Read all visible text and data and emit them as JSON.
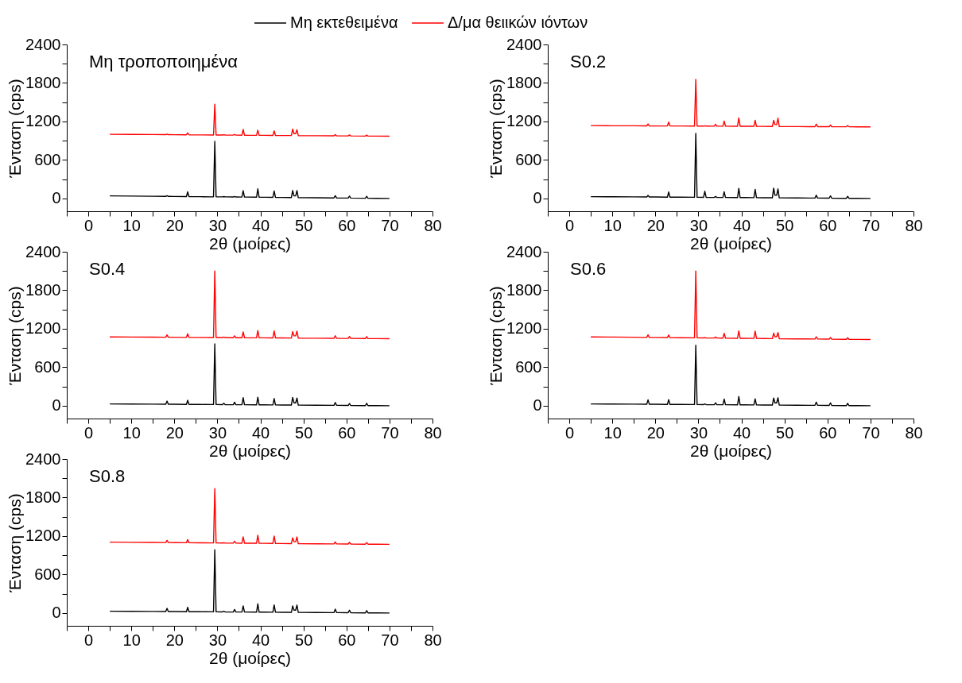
{
  "chart_data": [
    {
      "type": "line",
      "annotations": [
        "Μη τροποποιημένα"
      ],
      "xlabel": "2θ (μοίρες)",
      "ylabel": "Ένταση (cps)",
      "legend": "top",
      "x": [
        5,
        10,
        15,
        18.0,
        18.3,
        18.6,
        20,
        22.8,
        23.1,
        23.4,
        26,
        29.1,
        29.4,
        29.7,
        31.2,
        31.5,
        31.8,
        33.7,
        34.0,
        34.3,
        35.7,
        36.0,
        36.3,
        39.1,
        39.4,
        39.7,
        41,
        42.9,
        43.2,
        43.5,
        45,
        47.2,
        47.5,
        47.8,
        48.2,
        48.5,
        48.8,
        53,
        57.1,
        57.4,
        57.7,
        60.4,
        60.7,
        61.0,
        64.4,
        64.7,
        65.0,
        67,
        70
      ],
      "xlim": [
        -5,
        80
      ],
      "xticks": [
        {
          "value": -5,
          "label": null
        },
        0,
        {
          "value": 5,
          "label": null
        },
        10,
        {
          "value": 15,
          "label": null
        },
        20,
        {
          "value": 25,
          "label": null
        },
        30,
        {
          "value": 35,
          "label": null
        },
        40,
        {
          "value": 45,
          "label": null
        },
        50,
        {
          "value": 55,
          "label": null
        },
        60,
        {
          "value": 65,
          "label": null
        },
        70,
        {
          "value": 75,
          "label": null
        },
        80
      ],
      "ylim": [
        -200,
        2400
      ],
      "yticks": [
        0,
        {
          "value": 300,
          "label": null
        },
        600,
        {
          "value": 900,
          "label": null
        },
        1200,
        {
          "value": 1500,
          "label": null
        },
        1800,
        {
          "value": 2100,
          "label": null
        },
        2400
      ],
      "series": [
        {
          "name": "Μη εκτεθειμένα",
          "color": "#000000",
          "values": [
            40,
            37,
            34,
            32,
            42,
            32,
            31,
            29,
            104,
            29,
            27,
            25,
            890,
            25,
            24,
            29,
            24,
            22,
            30,
            22,
            21,
            121,
            21,
            19,
            149,
            19,
            18,
            17,
            117,
            17,
            15,
            14,
            124,
            40,
            40,
            123,
            13,
            10,
            8,
            43,
            8,
            6,
            36,
            6,
            3,
            33,
            3,
            2,
            0
          ]
        },
        {
          "name": "Δ/μα θειικών ιόντων",
          "color": "#ff0000",
          "values": [
            1000,
            998,
            996,
            994,
            1004,
            994,
            993,
            992,
            1022,
            992,
            990,
            989,
            1468,
            989,
            988,
            993,
            988,
            987,
            997,
            987,
            986,
            1076,
            986,
            984,
            1064,
            984,
            984,
            983,
            1053,
            983,
            981,
            981,
            1081,
            1010,
            1010,
            1071,
            980,
            978,
            976,
            996,
            976,
            975,
            990,
            975,
            972,
            987,
            972,
            972,
            970
          ]
        }
      ]
    },
    {
      "type": "line",
      "annotations": [
        "S0.2"
      ],
      "xlabel": "2θ (μοίρες)",
      "ylabel": "Ένταση (cps)",
      "x": [
        5,
        10,
        15,
        18.0,
        18.3,
        18.6,
        20,
        22.8,
        23.1,
        23.4,
        26,
        29.1,
        29.4,
        29.7,
        31.2,
        31.5,
        31.8,
        33.7,
        34.0,
        34.3,
        35.7,
        36.0,
        36.3,
        39.1,
        39.4,
        39.7,
        41,
        42.9,
        43.2,
        43.5,
        45,
        47.2,
        47.5,
        47.8,
        48.2,
        48.5,
        48.8,
        53,
        57.1,
        57.4,
        57.7,
        60.4,
        60.7,
        61.0,
        64.4,
        64.7,
        65.0,
        67,
        70
      ],
      "xlim": [
        -5,
        80
      ],
      "xticks": [
        {
          "value": -5,
          "label": null
        },
        0,
        {
          "value": 5,
          "label": null
        },
        10,
        {
          "value": 15,
          "label": null
        },
        20,
        {
          "value": 25,
          "label": null
        },
        30,
        {
          "value": 35,
          "label": null
        },
        40,
        {
          "value": 45,
          "label": null
        },
        50,
        {
          "value": 55,
          "label": null
        },
        60,
        {
          "value": 65,
          "label": null
        },
        70,
        {
          "value": 75,
          "label": null
        },
        80
      ],
      "ylim": [
        -200,
        2400
      ],
      "yticks": [
        0,
        {
          "value": 300,
          "label": null
        },
        600,
        {
          "value": 900,
          "label": null
        },
        1200,
        {
          "value": 1500,
          "label": null
        },
        1800,
        {
          "value": 2100,
          "label": null
        },
        2400
      ],
      "series": [
        {
          "color": "#000000",
          "values": [
            28,
            26,
            24,
            22,
            47,
            22,
            22,
            20,
            100,
            20,
            19,
            18,
            1015,
            18,
            17,
            112,
            17,
            15,
            30,
            15,
            15,
            105,
            15,
            13,
            158,
            13,
            13,
            12,
            142,
            12,
            11,
            10,
            160,
            50,
            49,
            149,
            9,
            7,
            6,
            51,
            6,
            4,
            39,
            4,
            2,
            32,
            2,
            1,
            0
          ]
        },
        {
          "color": "#ff0000",
          "values": [
            1135,
            1133,
            1132,
            1131,
            1161,
            1131,
            1130,
            1130,
            1190,
            1130,
            1129,
            1128,
            1857,
            1128,
            1127,
            1132,
            1127,
            1126,
            1156,
            1126,
            1126,
            1206,
            1126,
            1125,
            1255,
            1125,
            1124,
            1124,
            1219,
            1124,
            1123,
            1122,
            1217,
            1152,
            1151,
            1251,
            1121,
            1120,
            1119,
            1159,
            1119,
            1118,
            1143,
            1118,
            1117,
            1137,
            1117,
            1116,
            1115
          ]
        }
      ]
    },
    {
      "type": "line",
      "annotations": [
        "S0.4"
      ],
      "xlabel": "2θ (μοίρες)",
      "ylabel": "Ένταση (cps)",
      "x": [
        5,
        10,
        15,
        18.0,
        18.3,
        18.6,
        20,
        22.8,
        23.1,
        23.4,
        26,
        29.1,
        29.4,
        29.7,
        31.2,
        31.5,
        31.8,
        33.7,
        34.0,
        34.3,
        35.7,
        36.0,
        36.3,
        39.1,
        39.4,
        39.7,
        41,
        42.9,
        43.2,
        43.5,
        45,
        47.2,
        47.5,
        47.8,
        48.2,
        48.5,
        48.8,
        53,
        57.1,
        57.4,
        57.7,
        60.4,
        60.7,
        61.0,
        64.4,
        64.7,
        65.0,
        67,
        70
      ],
      "xlim": [
        -5,
        80
      ],
      "xticks": [
        {
          "value": -5,
          "label": null
        },
        0,
        {
          "value": 5,
          "label": null
        },
        10,
        {
          "value": 15,
          "label": null
        },
        20,
        {
          "value": 25,
          "label": null
        },
        30,
        {
          "value": 35,
          "label": null
        },
        40,
        {
          "value": 45,
          "label": null
        },
        50,
        {
          "value": 55,
          "label": null
        },
        60,
        {
          "value": 65,
          "label": null
        },
        70,
        {
          "value": 75,
          "label": null
        },
        80
      ],
      "ylim": [
        -200,
        2400
      ],
      "yticks": [
        0,
        {
          "value": 300,
          "label": null
        },
        600,
        {
          "value": 900,
          "label": null
        },
        1200,
        {
          "value": 1500,
          "label": null
        },
        1800,
        {
          "value": 2100,
          "label": null
        },
        2400
      ],
      "series": [
        {
          "color": "#000000",
          "values": [
            28,
            26,
            24,
            22,
            72,
            22,
            22,
            20,
            85,
            20,
            19,
            18,
            963,
            18,
            17,
            37,
            17,
            15,
            55,
            15,
            15,
            125,
            15,
            13,
            133,
            13,
            13,
            12,
            112,
            12,
            11,
            10,
            130,
            45,
            44,
            119,
            9,
            7,
            6,
            51,
            6,
            4,
            34,
            4,
            2,
            37,
            2,
            1,
            0
          ]
        },
        {
          "color": "#ff0000",
          "values": [
            1073,
            1071,
            1069,
            1067,
            1104,
            1067,
            1067,
            1065,
            1122,
            1065,
            1064,
            1063,
            2100,
            1063,
            1062,
            1070,
            1062,
            1060,
            1090,
            1060,
            1060,
            1150,
            1060,
            1058,
            1173,
            1058,
            1058,
            1057,
            1167,
            1057,
            1056,
            1055,
            1155,
            1090,
            1089,
            1164,
            1054,
            1052,
            1051,
            1091,
            1051,
            1049,
            1079,
            1049,
            1047,
            1077,
            1047,
            1046,
            1045
          ]
        }
      ]
    },
    {
      "type": "line",
      "annotations": [
        "S0.6"
      ],
      "xlabel": "2θ (μοίρες)",
      "ylabel": "Ένταση (cps)",
      "x": [
        5,
        10,
        15,
        18.0,
        18.3,
        18.6,
        20,
        22.8,
        23.1,
        23.4,
        26,
        29.1,
        29.4,
        29.7,
        31.2,
        31.5,
        31.8,
        33.7,
        34.0,
        34.3,
        35.7,
        36.0,
        36.3,
        39.1,
        39.4,
        39.7,
        41,
        42.9,
        43.2,
        43.5,
        45,
        47.2,
        47.5,
        47.8,
        48.2,
        48.5,
        48.8,
        53,
        57.1,
        57.4,
        57.7,
        60.4,
        60.7,
        61.0,
        64.4,
        64.7,
        65.0,
        67,
        70
      ],
      "xlim": [
        -5,
        80
      ],
      "xticks": [
        {
          "value": -5,
          "label": null
        },
        0,
        {
          "value": 5,
          "label": null
        },
        10,
        {
          "value": 15,
          "label": null
        },
        20,
        {
          "value": 25,
          "label": null
        },
        30,
        {
          "value": 35,
          "label": null
        },
        40,
        {
          "value": 45,
          "label": null
        },
        50,
        {
          "value": 55,
          "label": null
        },
        60,
        {
          "value": 65,
          "label": null
        },
        70,
        {
          "value": 75,
          "label": null
        },
        80
      ],
      "ylim": [
        -200,
        2400
      ],
      "yticks": [
        0,
        {
          "value": 300,
          "label": null
        },
        600,
        {
          "value": 900,
          "label": null
        },
        1200,
        {
          "value": 1500,
          "label": null
        },
        1800,
        {
          "value": 2100,
          "label": null
        },
        2400
      ],
      "series": [
        {
          "color": "#000000",
          "values": [
            28,
            26,
            24,
            22,
            92,
            22,
            22,
            20,
            95,
            20,
            19,
            18,
            942,
            18,
            17,
            27,
            17,
            15,
            45,
            15,
            15,
            105,
            15,
            13,
            143,
            13,
            13,
            12,
            107,
            12,
            11,
            10,
            120,
            45,
            44,
            124,
            9,
            7,
            6,
            56,
            6,
            4,
            44,
            4,
            2,
            37,
            2,
            1,
            0
          ]
        },
        {
          "color": "#ff0000",
          "values": [
            1073,
            1070,
            1067,
            1065,
            1105,
            1065,
            1064,
            1062,
            1102,
            1062,
            1060,
            1058,
            2100,
            1058,
            1057,
            1062,
            1057,
            1055,
            1070,
            1055,
            1054,
            1129,
            1054,
            1051,
            1166,
            1051,
            1050,
            1049,
            1164,
            1049,
            1047,
            1046,
            1131,
            1076,
            1075,
            1140,
            1045,
            1042,
            1040,
            1075,
            1040,
            1038,
            1063,
            1038,
            1035,
            1060,
            1035,
            1034,
            1032
          ]
        }
      ]
    },
    {
      "type": "line",
      "annotations": [
        "S0.8"
      ],
      "xlabel": "2θ (μοίρες)",
      "ylabel": "Ένταση (cps)",
      "x": [
        5,
        10,
        15,
        18.0,
        18.3,
        18.6,
        20,
        22.8,
        23.1,
        23.4,
        26,
        29.1,
        29.4,
        29.7,
        31.2,
        31.5,
        31.8,
        33.7,
        34.0,
        34.3,
        35.7,
        36.0,
        36.3,
        39.1,
        39.4,
        39.7,
        41,
        42.9,
        43.2,
        43.5,
        45,
        47.2,
        47.5,
        47.8,
        48.2,
        48.5,
        48.8,
        53,
        57.1,
        57.4,
        57.7,
        60.4,
        60.7,
        61.0,
        64.4,
        64.7,
        65.0,
        67,
        70
      ],
      "xlim": [
        -5,
        80
      ],
      "xticks": [
        {
          "value": -5,
          "label": null
        },
        0,
        {
          "value": 5,
          "label": null
        },
        10,
        {
          "value": 15,
          "label": null
        },
        20,
        {
          "value": 25,
          "label": null
        },
        30,
        {
          "value": 35,
          "label": null
        },
        40,
        {
          "value": 45,
          "label": null
        },
        50,
        {
          "value": 55,
          "label": null
        },
        60,
        {
          "value": 65,
          "label": null
        },
        70,
        {
          "value": 75,
          "label": null
        },
        80
      ],
      "ylim": [
        -200,
        2400
      ],
      "yticks": [
        0,
        {
          "value": 300,
          "label": null
        },
        600,
        {
          "value": 900,
          "label": null
        },
        1200,
        {
          "value": 1500,
          "label": null
        },
        1800,
        {
          "value": 2100,
          "label": null
        },
        2400
      ],
      "series": [
        {
          "color": "#000000",
          "values": [
            28,
            26,
            24,
            22,
            72,
            22,
            22,
            20,
            90,
            20,
            19,
            18,
            987,
            18,
            17,
            27,
            17,
            15,
            55,
            15,
            15,
            110,
            15,
            13,
            143,
            13,
            13,
            12,
            127,
            12,
            11,
            10,
            110,
            45,
            44,
            124,
            9,
            7,
            6,
            61,
            6,
            4,
            44,
            4,
            2,
            37,
            2,
            1,
            0
          ]
        },
        {
          "color": "#ff0000",
          "values": [
            1105,
            1102,
            1100,
            1098,
            1133,
            1098,
            1097,
            1095,
            1145,
            1095,
            1094,
            1092,
            1938,
            1092,
            1091,
            1096,
            1091,
            1089,
            1119,
            1089,
            1088,
            1188,
            1088,
            1087,
            1212,
            1087,
            1086,
            1085,
            1200,
            1085,
            1083,
            1082,
            1172,
            1112,
            1111,
            1186,
            1081,
            1079,
            1077,
            1107,
            1077,
            1075,
            1100,
            1075,
            1073,
            1098,
            1073,
            1072,
            1070
          ]
        }
      ]
    }
  ]
}
